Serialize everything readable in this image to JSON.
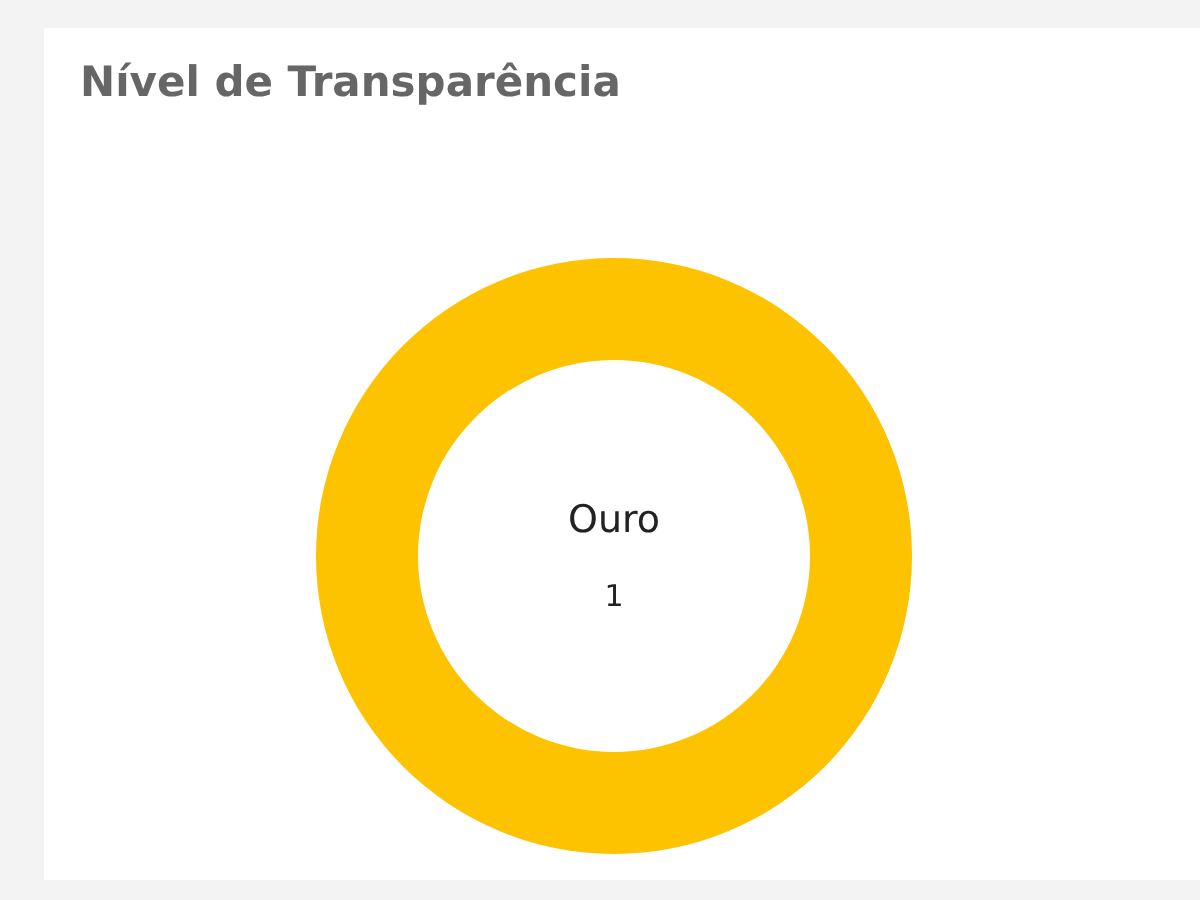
{
  "chart_data": {
    "type": "donut",
    "title": "Nível de Transparência",
    "categories": [
      "Ouro"
    ],
    "values": [
      1
    ],
    "colors": [
      "#fdc200"
    ],
    "data_labels": true,
    "legend": false
  }
}
